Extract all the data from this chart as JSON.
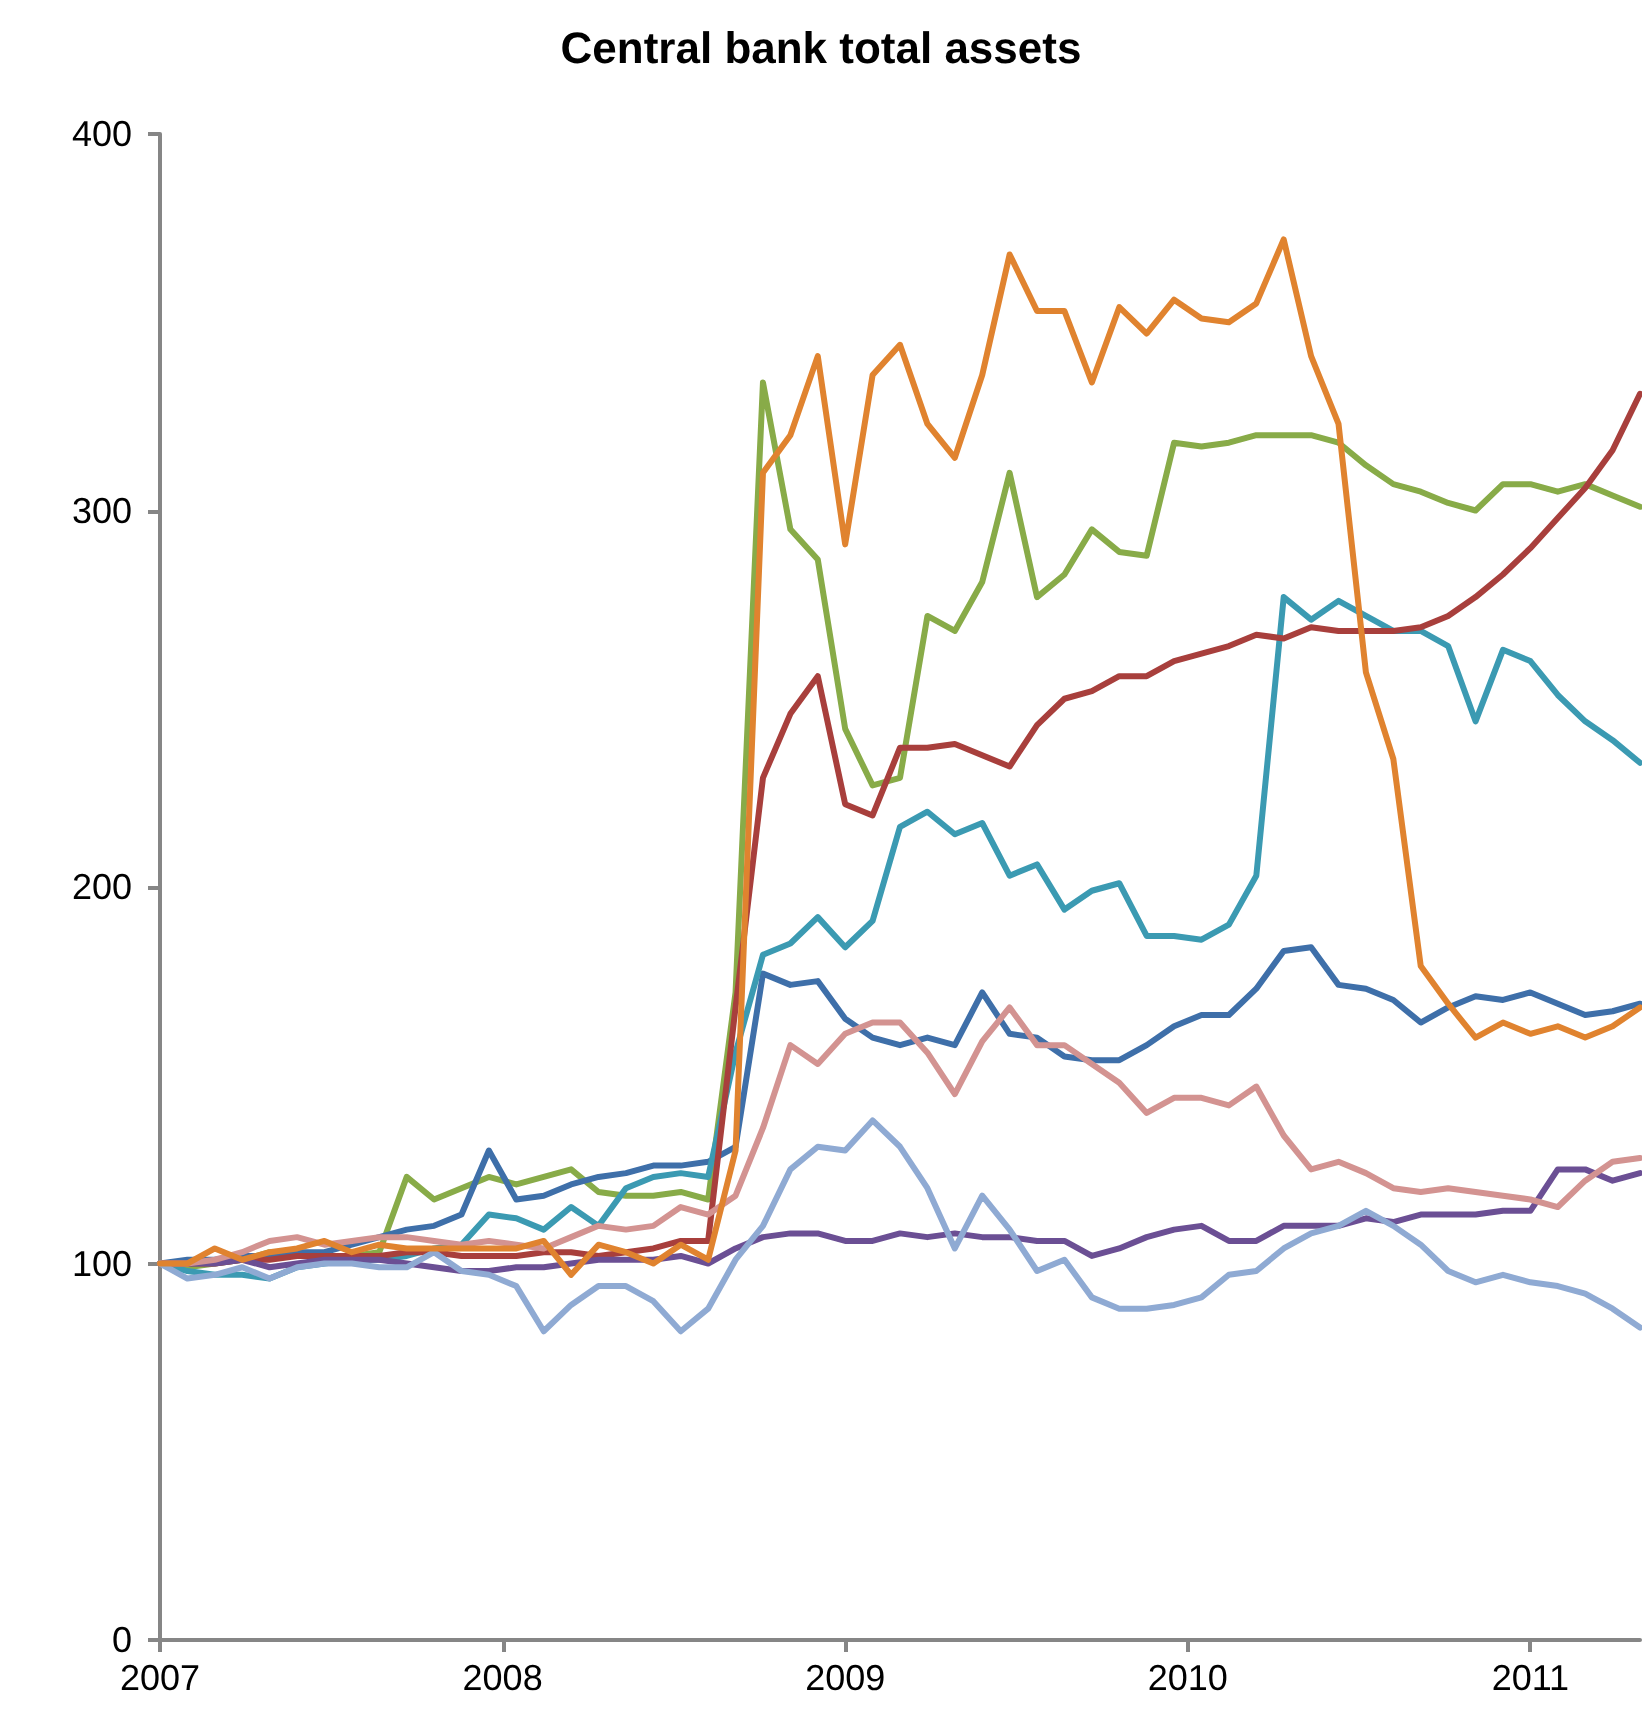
{
  "chart_data": {
    "type": "line",
    "title": "Central bank total assets",
    "x": [
      2007,
      2007.08,
      2007.16,
      2007.24,
      2007.32,
      2007.4,
      2007.48,
      2007.56,
      2007.64,
      2007.72,
      2007.8,
      2007.88,
      2007.96,
      2008.04,
      2008.12,
      2008.2,
      2008.28,
      2008.36,
      2008.44,
      2008.52,
      2008.6,
      2008.68,
      2008.76,
      2008.84,
      2008.92,
      2009,
      2009.08,
      2009.16,
      2009.24,
      2009.32,
      2009.4,
      2009.48,
      2009.56,
      2009.64,
      2009.72,
      2009.8,
      2009.88,
      2009.96,
      2010.04,
      2010.12,
      2010.2,
      2010.28,
      2010.36,
      2010.44,
      2010.52,
      2010.6,
      2010.68,
      2010.76,
      2010.84,
      2010.92,
      2011,
      2011.08,
      2011.16,
      2011.24,
      2011.32
    ],
    "series": [
      {
        "color": "#88ab48",
        "values": [
          100,
          99,
          100,
          101,
          103,
          103,
          101,
          102,
          103,
          123,
          117,
          120,
          123,
          121,
          123,
          125,
          119,
          118,
          118,
          119,
          117,
          172,
          334,
          295,
          287,
          242,
          227,
          229,
          272,
          268,
          281,
          310,
          277,
          283,
          295,
          289,
          288,
          318,
          317,
          318,
          320,
          320,
          320,
          318,
          312,
          307,
          305,
          302,
          300,
          307,
          307,
          305,
          307,
          304,
          301
        ]
      },
      {
        "color": "#3e6fa9",
        "values": [
          100,
          101,
          101,
          102,
          102,
          103,
          103,
          105,
          107,
          109,
          110,
          113,
          130,
          117,
          118,
          121,
          123,
          124,
          126,
          126,
          127,
          131,
          177,
          174,
          175,
          165,
          160,
          158,
          160,
          158,
          172,
          161,
          160,
          155,
          154,
          154,
          158,
          163,
          166,
          166,
          173,
          183,
          184,
          174,
          173,
          170,
          164,
          168,
          171,
          170,
          172,
          169,
          166,
          167,
          169
        ]
      },
      {
        "color": "#3b9ab2",
        "values": [
          100,
          98,
          97,
          97,
          96,
          99,
          100,
          101,
          101,
          102,
          104,
          105,
          113,
          112,
          109,
          115,
          110,
          120,
          123,
          124,
          123,
          156,
          182,
          185,
          192,
          184,
          191,
          216,
          220,
          214,
          217,
          203,
          206,
          194,
          199,
          201,
          187,
          187,
          186,
          190,
          203,
          277,
          271,
          276,
          272,
          268,
          268,
          264,
          244,
          263,
          260,
          251,
          244,
          239,
          233
        ]
      },
      {
        "color": "#a83f3c",
        "values": [
          100,
          100,
          100,
          101,
          101,
          102,
          102,
          102,
          102,
          103,
          103,
          102,
          102,
          102,
          103,
          103,
          102,
          103,
          104,
          106,
          106,
          168,
          229,
          246,
          256,
          222,
          219,
          237,
          237,
          238,
          235,
          232,
          243,
          250,
          252,
          256,
          256,
          260,
          262,
          264,
          267,
          266,
          269,
          268,
          268,
          268,
          269,
          272,
          277,
          283,
          290,
          298,
          306,
          316,
          331
        ]
      },
      {
        "color": "#6b4f94",
        "values": [
          100,
          100,
          100,
          101,
          99,
          100,
          101,
          101,
          101,
          100,
          99,
          98,
          98,
          99,
          99,
          100,
          101,
          101,
          101,
          102,
          100,
          104,
          107,
          108,
          108,
          106,
          106,
          108,
          107,
          108,
          107,
          107,
          106,
          106,
          102,
          104,
          107,
          109,
          110,
          106,
          106,
          110,
          110,
          110,
          112,
          111,
          113,
          113,
          113,
          114,
          114,
          125,
          125,
          122,
          124
        ]
      },
      {
        "color": "#d39391",
        "values": [
          100,
          100,
          101,
          103,
          106,
          107,
          105,
          106,
          107,
          107,
          106,
          105,
          106,
          105,
          104,
          107,
          110,
          109,
          110,
          115,
          113,
          118,
          136,
          158,
          153,
          161,
          164,
          164,
          156,
          145,
          159,
          168,
          158,
          158,
          153,
          148,
          140,
          144,
          144,
          142,
          147,
          134,
          125,
          127,
          124,
          120,
          119,
          120,
          119,
          118,
          117,
          115,
          122,
          127,
          128
        ]
      },
      {
        "color": "#8faad3",
        "values": [
          100,
          96,
          97,
          99,
          96,
          99,
          100,
          100,
          99,
          99,
          103,
          98,
          97,
          94,
          82,
          89,
          94,
          94,
          90,
          82,
          88,
          101,
          110,
          125,
          131,
          130,
          138,
          131,
          120,
          104,
          118,
          109,
          98,
          101,
          91,
          88,
          88,
          89,
          91,
          97,
          98,
          104,
          108,
          110,
          114,
          110,
          105,
          98,
          95,
          97,
          95,
          94,
          92,
          88,
          83
        ]
      },
      {
        "color": "#e0832f",
        "values": [
          100,
          100,
          104,
          101,
          103,
          104,
          106,
          103,
          105,
          104,
          104,
          104,
          104,
          104,
          106,
          97,
          105,
          103,
          100,
          105,
          101,
          130,
          310,
          320,
          341,
          291,
          336,
          344,
          323,
          314,
          336,
          368,
          353,
          353,
          334,
          354,
          347,
          356,
          351,
          350,
          355,
          372,
          341,
          323,
          257,
          234,
          179,
          169,
          160,
          164,
          161,
          163,
          160,
          163,
          168
        ]
      }
    ],
    "xlim": [
      2007,
      2011.32
    ],
    "xticks": [
      2007,
      2008,
      2009,
      2010,
      2011
    ],
    "ylim": [
      0,
      400
    ],
    "yticks": [
      0,
      100,
      200,
      300,
      400
    ],
    "marker": "none",
    "line_style": "solid"
  }
}
